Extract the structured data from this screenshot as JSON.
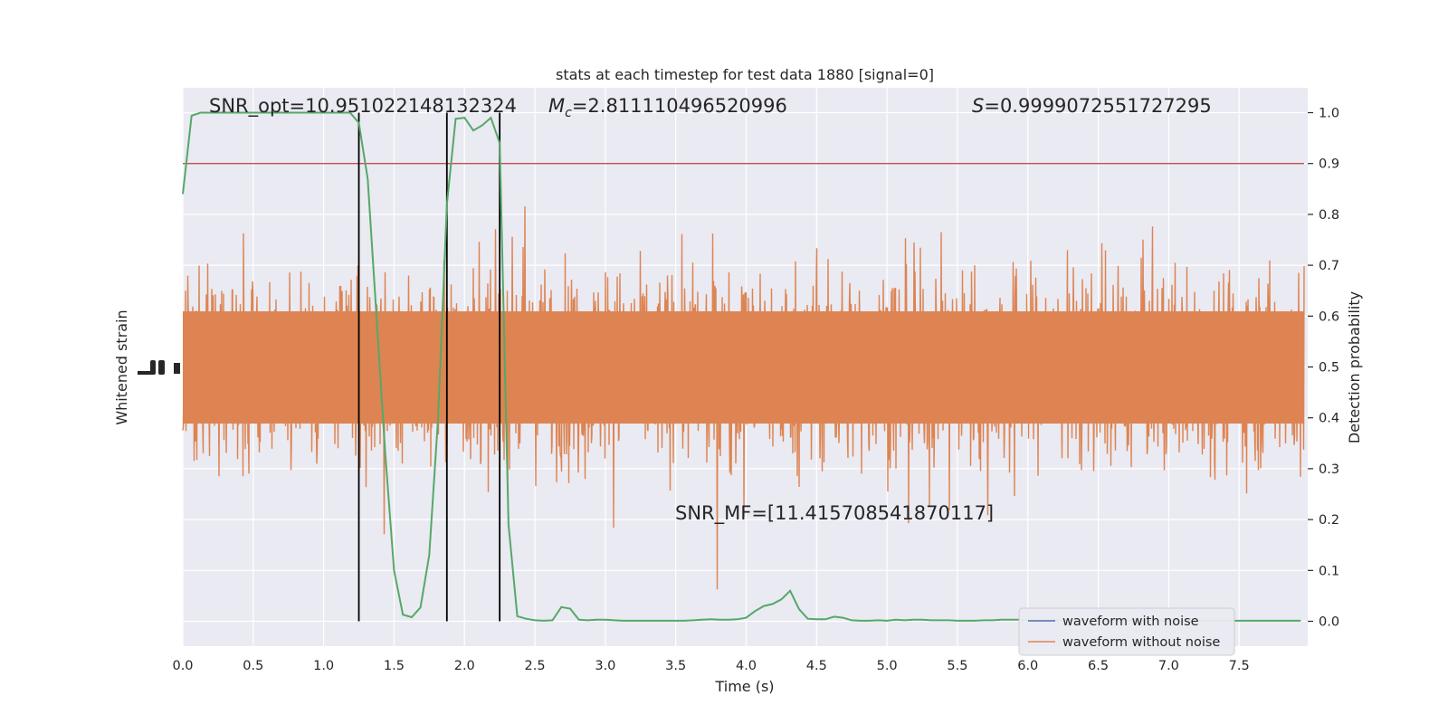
{
  "chart_data": {
    "type": "line",
    "title": "stats at each timestep for test data 1880 [signal=0]",
    "xlabel": "Time (s)",
    "ylabel_left": "Whitened strain",
    "ylabel_right": "Detection probability",
    "xlim": [
      0.0,
      8.0
    ],
    "ylim_right": [
      -0.05,
      1.05
    ],
    "x_ticks": [
      0.0,
      0.5,
      1.0,
      1.5,
      2.0,
      2.5,
      3.0,
      3.5,
      4.0,
      4.5,
      5.0,
      5.5,
      6.0,
      6.5,
      7.0,
      7.5
    ],
    "x_tick_labels": [
      "0.0",
      "0.5",
      "1.0",
      "1.5",
      "2.0",
      "2.5",
      "3.0",
      "3.5",
      "4.0",
      "4.5",
      "5.0",
      "5.5",
      "6.0",
      "6.5",
      "7.0",
      "7.5"
    ],
    "y_right_ticks": [
      0.0,
      0.1,
      0.2,
      0.3,
      0.4,
      0.5,
      0.6,
      0.7,
      0.8,
      0.9,
      1.0
    ],
    "y_right_tick_labels": [
      "0.0",
      "0.1",
      "0.2",
      "0.3",
      "0.4",
      "0.5",
      "0.6",
      "0.7",
      "0.8",
      "0.9",
      "1.0"
    ],
    "annotations": {
      "snr_opt": "SNR_opt=10.951022148132324",
      "mc_symbol": "M",
      "mc_sub": "c",
      "mc_value": "=2.811110496520996",
      "s_symbol": "S",
      "s_value": "=0.9999072551727295",
      "snr_mf": "SNR_MF=[11.415708541870117]"
    },
    "threshold": 0.9,
    "vertical_lines_x": [
      1.25,
      1.875,
      2.25
    ],
    "detection_probability": {
      "x": [
        0.0,
        0.0625,
        0.125,
        0.1875,
        0.25,
        0.3125,
        0.375,
        0.4375,
        0.5,
        0.5625,
        0.625,
        0.6875,
        0.75,
        0.8125,
        0.875,
        0.9375,
        1.0,
        1.0625,
        1.125,
        1.1875,
        1.25,
        1.3125,
        1.375,
        1.4375,
        1.5,
        1.5625,
        1.625,
        1.6875,
        1.75,
        1.8125,
        1.875,
        1.9375,
        2.0,
        2.0625,
        2.125,
        2.1875,
        2.25,
        2.3125,
        2.375,
        2.4375,
        2.5,
        2.5625,
        2.625,
        2.6875,
        2.75,
        2.8125,
        2.875,
        2.9375,
        3.0,
        3.0625,
        3.125,
        3.1875,
        3.25,
        3.3125,
        3.375,
        3.4375,
        3.5,
        3.5625,
        3.625,
        3.6875,
        3.75,
        3.8125,
        3.875,
        3.9375,
        4.0,
        4.0625,
        4.125,
        4.1875,
        4.25,
        4.3125,
        4.375,
        4.4375,
        4.5,
        4.5625,
        4.625,
        4.6875,
        4.75,
        4.8125,
        4.875,
        4.9375,
        5.0,
        5.0625,
        5.125,
        5.1875,
        5.25,
        5.3125,
        5.375,
        5.4375,
        5.5,
        5.5625,
        5.625,
        5.6875,
        5.75,
        5.8125,
        5.875,
        5.9375,
        6.0,
        6.5,
        7.0,
        7.5,
        7.9375
      ],
      "y": [
        0.84,
        0.994,
        1.0,
        1.0,
        1.0,
        1.0,
        1.0,
        1.0,
        1.0,
        1.0,
        1.0,
        1.0,
        1.0,
        1.0,
        1.0,
        1.0,
        1.0,
        1.0,
        1.0,
        1.0,
        0.98,
        0.87,
        0.6,
        0.33,
        0.1,
        0.013,
        0.008,
        0.027,
        0.13,
        0.4,
        0.82,
        0.988,
        0.99,
        0.965,
        0.975,
        0.99,
        0.94,
        0.19,
        0.01,
        0.005,
        0.002,
        0.001,
        0.002,
        0.028,
        0.025,
        0.003,
        0.002,
        0.003,
        0.003,
        0.002,
        0.001,
        0.001,
        0.001,
        0.001,
        0.001,
        0.001,
        0.001,
        0.001,
        0.002,
        0.003,
        0.004,
        0.003,
        0.003,
        0.004,
        0.007,
        0.02,
        0.03,
        0.034,
        0.043,
        0.06,
        0.024,
        0.005,
        0.004,
        0.004,
        0.009,
        0.007,
        0.002,
        0.001,
        0.001,
        0.002,
        0.001,
        0.003,
        0.002,
        0.003,
        0.003,
        0.002,
        0.002,
        0.002,
        0.001,
        0.001,
        0.001,
        0.002,
        0.002,
        0.003,
        0.003,
        0.003,
        0.002,
        0.002,
        0.001,
        0.001,
        0.001
      ]
    },
    "series": [
      {
        "name": "waveform with noise",
        "color": "#4c72b0"
      },
      {
        "name": "waveform without noise",
        "color": "#dd8452"
      }
    ],
    "probability_color": "#55a868",
    "threshold_color": "#c44e52",
    "background_color": "#eaeaf2",
    "legend_position": "lower right",
    "grid": true
  }
}
